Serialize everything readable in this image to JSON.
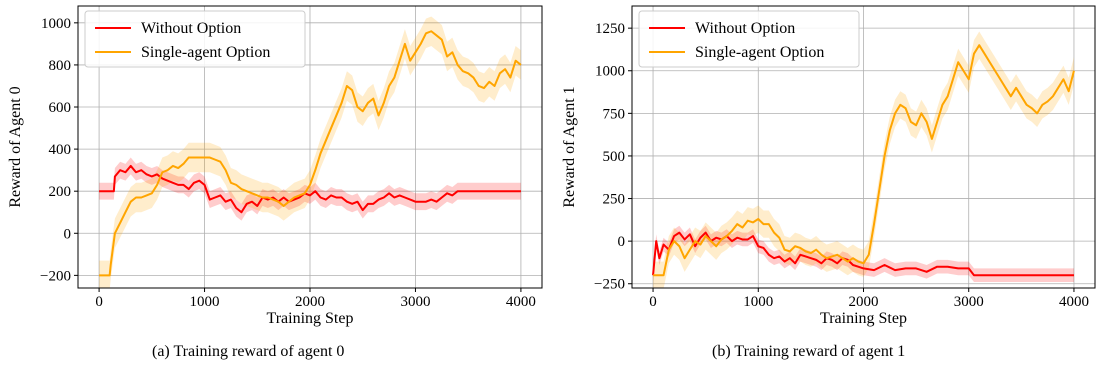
{
  "figure": {
    "captions": [
      "(a) Training reward of agent 0",
      "(b) Training reward of agent 1"
    ]
  },
  "chart_data": [
    {
      "type": "line",
      "panel": "a",
      "xlabel": "Training Step",
      "ylabel": "Reward of Agent 0",
      "xlim": [
        -200,
        4200
      ],
      "ylim": [
        -260,
        1080
      ],
      "xticks": [
        0,
        1000,
        2000,
        3000,
        4000
      ],
      "yticks": [
        -200,
        0,
        200,
        400,
        600,
        800,
        1000
      ],
      "grid": true,
      "legend_position": "top-left",
      "series": [
        {
          "name": "Without Option",
          "color": "#ff0000",
          "band": 40,
          "x": [
            0,
            140,
            150,
            200,
            250,
            300,
            350,
            400,
            450,
            500,
            550,
            600,
            650,
            700,
            750,
            800,
            850,
            900,
            950,
            1000,
            1050,
            1100,
            1150,
            1200,
            1250,
            1300,
            1350,
            1400,
            1450,
            1500,
            1550,
            1600,
            1650,
            1700,
            1750,
            1800,
            1850,
            1900,
            1950,
            2000,
            2050,
            2100,
            2150,
            2200,
            2250,
            2300,
            2350,
            2400,
            2450,
            2500,
            2550,
            2600,
            2650,
            2700,
            2750,
            2800,
            2850,
            2900,
            2950,
            3000,
            3050,
            3100,
            3150,
            3200,
            3250,
            3300,
            3350,
            3400,
            3500,
            4000
          ],
          "y": [
            200,
            200,
            270,
            300,
            290,
            320,
            290,
            300,
            280,
            270,
            280,
            260,
            250,
            240,
            230,
            230,
            210,
            240,
            250,
            230,
            160,
            170,
            180,
            150,
            160,
            120,
            100,
            140,
            150,
            130,
            170,
            160,
            170,
            150,
            170,
            150,
            160,
            170,
            190,
            180,
            200,
            170,
            160,
            180,
            170,
            170,
            150,
            140,
            150,
            110,
            140,
            140,
            160,
            170,
            190,
            170,
            180,
            170,
            160,
            150,
            150,
            150,
            160,
            150,
            170,
            190,
            180,
            200,
            200,
            200
          ]
        },
        {
          "name": "Single-agent Option",
          "color": "#ffa500",
          "band": 70,
          "x": [
            0,
            100,
            110,
            150,
            200,
            250,
            300,
            350,
            400,
            450,
            500,
            550,
            600,
            650,
            700,
            750,
            800,
            850,
            900,
            950,
            1000,
            1050,
            1100,
            1150,
            1200,
            1250,
            1300,
            1350,
            1400,
            1450,
            1500,
            1550,
            1600,
            1650,
            1700,
            1750,
            1800,
            1850,
            1900,
            1950,
            2000,
            2050,
            2100,
            2150,
            2200,
            2250,
            2300,
            2350,
            2400,
            2450,
            2500,
            2550,
            2600,
            2650,
            2700,
            2750,
            2800,
            2850,
            2900,
            2950,
            3000,
            3050,
            3100,
            3150,
            3200,
            3250,
            3300,
            3350,
            3400,
            3450,
            3500,
            3550,
            3600,
            3650,
            3700,
            3750,
            3800,
            3850,
            3900,
            3950,
            4000
          ],
          "y": [
            -200,
            -200,
            -150,
            0,
            50,
            100,
            150,
            170,
            170,
            180,
            190,
            230,
            290,
            300,
            320,
            310,
            330,
            360,
            360,
            360,
            360,
            360,
            350,
            340,
            300,
            240,
            230,
            210,
            200,
            190,
            180,
            170,
            170,
            160,
            150,
            130,
            150,
            170,
            180,
            190,
            230,
            300,
            380,
            440,
            500,
            560,
            620,
            700,
            680,
            600,
            580,
            620,
            640,
            560,
            620,
            700,
            740,
            820,
            900,
            820,
            860,
            900,
            950,
            960,
            940,
            920,
            840,
            860,
            800,
            770,
            760,
            740,
            700,
            690,
            720,
            700,
            760,
            780,
            740,
            820,
            800
          ]
        }
      ]
    },
    {
      "type": "line",
      "panel": "b",
      "xlabel": "Training Step",
      "ylabel": "Reward of Agent 1",
      "xlim": [
        -200,
        4200
      ],
      "ylim": [
        -275,
        1380
      ],
      "xticks": [
        0,
        1000,
        2000,
        3000,
        4000
      ],
      "yticks": [
        -250,
        0,
        250,
        500,
        750,
        1000,
        1250
      ],
      "grid": true,
      "legend_position": "top-left",
      "series": [
        {
          "name": "Without Option",
          "color": "#ff0000",
          "band": 40,
          "x": [
            0,
            30,
            60,
            100,
            150,
            200,
            250,
            300,
            350,
            400,
            450,
            500,
            550,
            600,
            650,
            700,
            750,
            800,
            850,
            900,
            950,
            1000,
            1050,
            1100,
            1150,
            1200,
            1250,
            1300,
            1350,
            1400,
            1450,
            1500,
            1550,
            1600,
            1650,
            1700,
            1750,
            1800,
            1850,
            1900,
            1950,
            2000,
            2100,
            2200,
            2300,
            2400,
            2500,
            2600,
            2700,
            2800,
            2900,
            3000,
            3050,
            3500,
            4000
          ],
          "y": [
            -200,
            0,
            -100,
            -20,
            -50,
            30,
            50,
            10,
            40,
            -30,
            20,
            50,
            0,
            20,
            10,
            30,
            0,
            20,
            10,
            10,
            30,
            -30,
            -40,
            -80,
            -100,
            -90,
            -120,
            -100,
            -130,
            -80,
            -90,
            -100,
            -110,
            -130,
            -100,
            -110,
            -130,
            -100,
            -110,
            -140,
            -150,
            -160,
            -170,
            -140,
            -170,
            -160,
            -160,
            -180,
            -150,
            -150,
            -160,
            -160,
            -200,
            -200,
            -200
          ]
        },
        {
          "name": "Single-agent Option",
          "color": "#ffa500",
          "band": 80,
          "x": [
            0,
            100,
            150,
            200,
            250,
            300,
            350,
            400,
            450,
            500,
            550,
            600,
            650,
            700,
            750,
            800,
            850,
            900,
            950,
            1000,
            1050,
            1100,
            1150,
            1200,
            1250,
            1300,
            1350,
            1400,
            1450,
            1500,
            1550,
            1600,
            1650,
            1700,
            1750,
            1800,
            1850,
            1900,
            1950,
            2000,
            2050,
            2100,
            2150,
            2200,
            2250,
            2300,
            2350,
            2400,
            2450,
            2500,
            2550,
            2600,
            2650,
            2700,
            2750,
            2800,
            2850,
            2900,
            2950,
            3000,
            3050,
            3100,
            3150,
            3200,
            3250,
            3300,
            3350,
            3400,
            3450,
            3500,
            3550,
            3600,
            3650,
            3700,
            3750,
            3800,
            3850,
            3900,
            3950,
            4000
          ],
          "y": [
            -200,
            -200,
            -50,
            0,
            -30,
            -100,
            -50,
            0,
            -20,
            30,
            0,
            -30,
            10,
            30,
            60,
            100,
            80,
            120,
            110,
            130,
            100,
            100,
            50,
            20,
            -50,
            -60,
            -30,
            -40,
            -60,
            -70,
            -50,
            -80,
            -100,
            -90,
            -80,
            -100,
            -120,
            -100,
            -120,
            -130,
            -80,
            100,
            300,
            500,
            650,
            750,
            800,
            780,
            700,
            680,
            750,
            700,
            600,
            700,
            800,
            850,
            950,
            1050,
            1000,
            950,
            1100,
            1150,
            1100,
            1050,
            1000,
            950,
            900,
            850,
            900,
            850,
            800,
            780,
            750,
            800,
            820,
            850,
            900,
            950,
            880,
            1000
          ]
        }
      ]
    }
  ]
}
